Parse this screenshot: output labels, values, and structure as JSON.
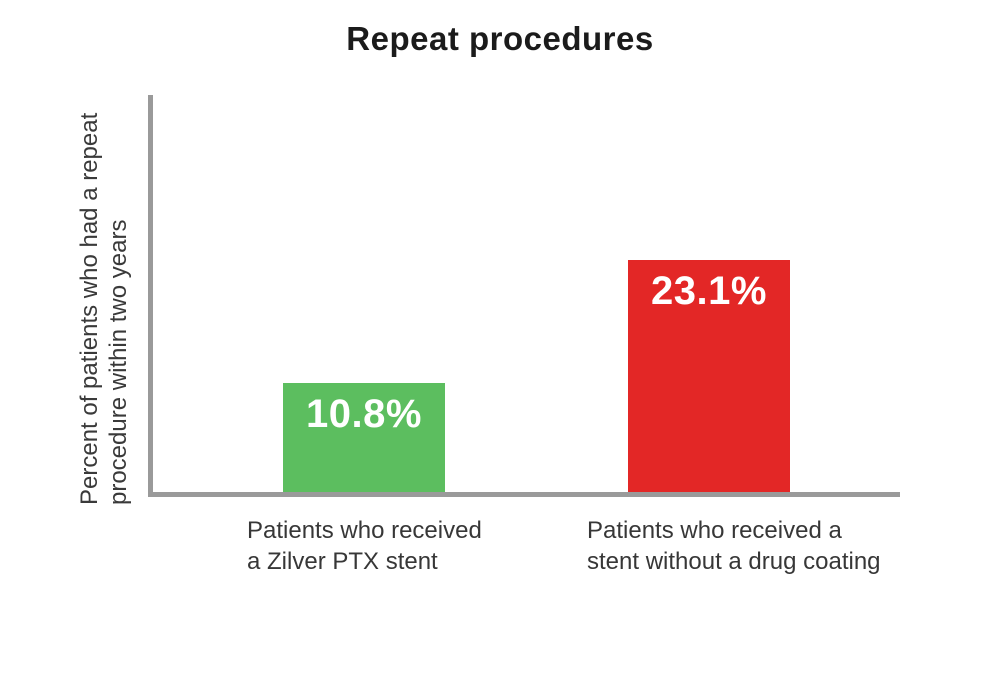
{
  "chart_data": {
    "type": "bar",
    "title": "Repeat procedures",
    "ylabel": "Percent of patients who had a repeat procedure within two years",
    "ylabel_lines": [
      "Percent of patients who had a repeat",
      "procedure within two years"
    ],
    "xlabel": "",
    "categories": [
      "Patients who received a Zilver PTX stent",
      "Patients who received a stent without a drug coating"
    ],
    "values": [
      10.8,
      23.1
    ],
    "ylim": [
      0,
      39.5
    ],
    "grid": false,
    "legend": false,
    "axis_color": "#9a9a9a",
    "bars": [
      {
        "value": 10.8,
        "label": "10.8%",
        "color": "#5cbe5f",
        "category_lines": [
          "Patients who received",
          "a Zilver PTX stent"
        ]
      },
      {
        "value": 23.1,
        "label": "23.1%",
        "color": "#e32726",
        "category_lines": [
          "Patients who received a",
          "stent without a drug coating"
        ]
      }
    ]
  }
}
